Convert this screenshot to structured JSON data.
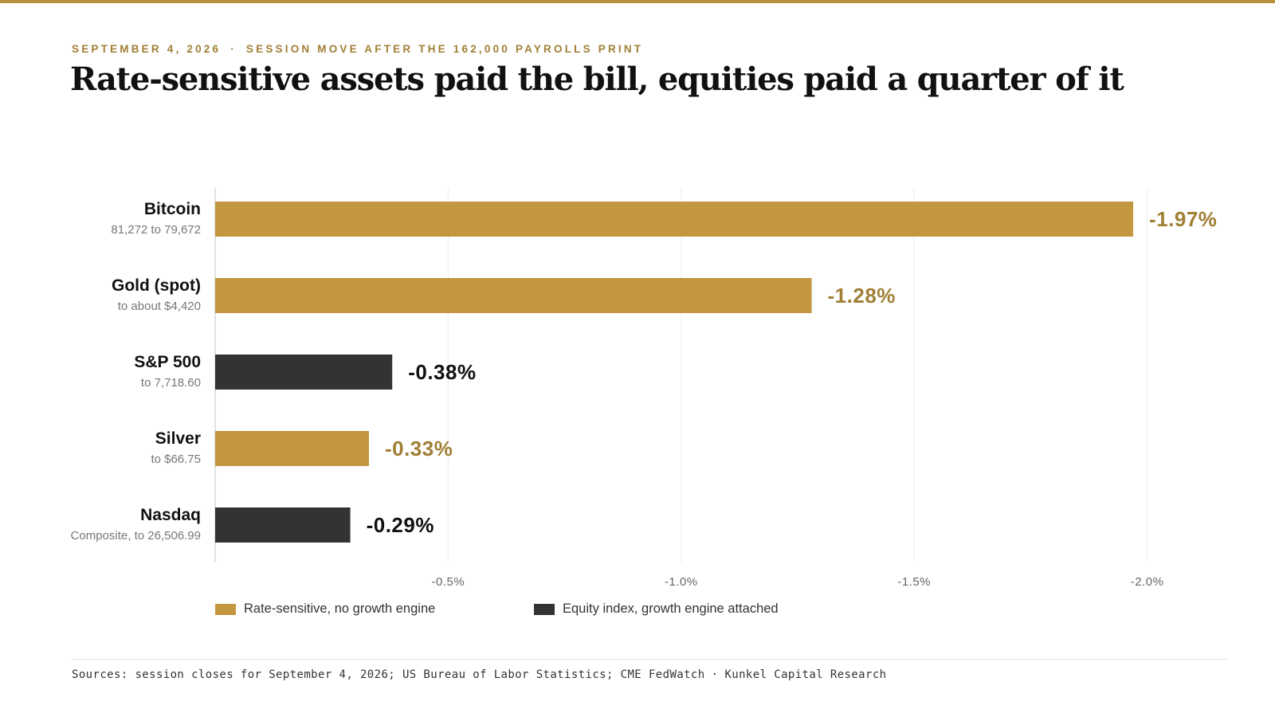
{
  "header": {
    "date": "SEPTEMBER 4, 2026",
    "separator": "·",
    "kicker": "SESSION MOVE AFTER THE 162,000 PAYROLLS PRINT",
    "title": "Rate-sensitive assets paid the bill, equities paid a quarter of it"
  },
  "chart_data": {
    "type": "bar",
    "orientation": "horizontal",
    "categories": [
      "Bitcoin",
      "Gold (spot)",
      "S&P 500",
      "Silver",
      "Nasdaq"
    ],
    "sublabels": [
      "81,272 to 79,672",
      "to about $4,420",
      "to 7,718.60",
      "to $66.75",
      "Composite, to 26,506.99"
    ],
    "values": [
      -1.97,
      -1.28,
      -0.38,
      -0.33,
      -0.29
    ],
    "value_labels": [
      "-1.97%",
      "-1.28%",
      "-0.38%",
      "-0.33%",
      "-0.29%"
    ],
    "groups": [
      "rate",
      "rate",
      "equity",
      "rate",
      "equity"
    ],
    "xlim": [
      0,
      -2.3
    ],
    "xticks": [
      -0.5,
      -1.0,
      -1.5,
      -2.0
    ],
    "xtick_labels": [
      "-0.5%",
      "-1.0%",
      "-1.5%",
      "-2.0%"
    ],
    "grid": "vertical",
    "legend": [
      {
        "group": "rate",
        "label": "Rate-sensitive, no growth engine",
        "color": "#c4963f"
      },
      {
        "group": "equity",
        "label": "Equity index, growth engine attached",
        "color": "#333333"
      }
    ],
    "colors": {
      "rate": "#c4963f",
      "equity": "#333333",
      "rate_label": "#a07f35",
      "equity_label": "#111111"
    }
  },
  "footer": {
    "sources": "Sources: session closes for September 4, 2026; US Bureau of Labor Statistics; CME FedWatch",
    "separator": "·",
    "credit": "Kunkel Capital Research"
  }
}
